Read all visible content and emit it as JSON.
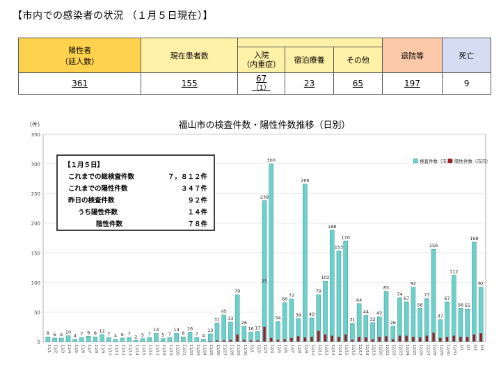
{
  "header": {
    "title": "【市内での感染者の状況 （１月５日現在）】"
  },
  "summary": {
    "headers": {
      "positive": "陽性者\n（延人数）",
      "current": "現在患者数",
      "hospital": "入院\n（内重症）",
      "hotel": "宿泊療養",
      "other": "その他",
      "discharged": "退院等",
      "death": "死亡"
    },
    "values": {
      "positive": "361",
      "current": "155",
      "hospital": "67",
      "hospital_severe": "（1）",
      "hotel": "23",
      "other": "65",
      "discharged": "197",
      "death": "9"
    }
  },
  "info": {
    "heading": "【１月５日】",
    "lines": [
      {
        "label": "これまでの総検査件数",
        "value": "７，８１２件"
      },
      {
        "label": "これまでの陽性件数",
        "value": "３４７件"
      },
      {
        "label": "昨日の検査件数",
        "value": "９２件"
      },
      {
        "label": "うち陽性件数",
        "value": "１４件"
      },
      {
        "label": "陰性件数",
        "value": "７８件"
      }
    ]
  },
  "chart_data": {
    "type": "bar",
    "title": "福山市の検査件数・陽性件数推移（日別）",
    "ylabel": "（件）",
    "ylim": [
      0,
      350
    ],
    "yticks": [
      0,
      50,
      100,
      150,
      200,
      250,
      300,
      350
    ],
    "grid": true,
    "legend_position": "top-right",
    "colors": {
      "tests": "#6fd0cb",
      "positive": "#9c1c24"
    },
    "series": [
      {
        "name": "検査件数（市内）",
        "values": [
          8,
          6,
          6,
          10,
          4,
          7,
          9,
          8,
          12,
          7,
          4,
          6,
          7,
          2,
          5,
          7,
          14,
          5,
          7,
          14,
          8,
          16,
          7,
          4,
          13,
          31,
          45,
          33,
          79,
          26,
          16,
          17,
          238,
          300,
          34,
          66,
          72,
          39,
          266,
          40,
          79,
          102,
          188,
          153,
          170,
          31,
          64,
          44,
          32,
          42,
          85,
          26,
          74,
          67,
          92,
          56,
          73,
          156,
          37,
          67,
          112,
          56,
          55,
          168,
          92
        ]
      },
      {
        "name": "陽性件数（市内）",
        "values": [
          0,
          0,
          0,
          0,
          0,
          0,
          0,
          0,
          0,
          0,
          0,
          0,
          0,
          0,
          0,
          0,
          0,
          0,
          0,
          0,
          0,
          0,
          0,
          0,
          1,
          2,
          2,
          3,
          12,
          3,
          2,
          2,
          25,
          6,
          3,
          4,
          6,
          9,
          7,
          8,
          18,
          12,
          10,
          8,
          12,
          3,
          8,
          7,
          4,
          8,
          9,
          4,
          10,
          10,
          8,
          7,
          10,
          15,
          6,
          8,
          10,
          8,
          8,
          12,
          14
        ]
      }
    ],
    "data_labels": [
      "8",
      "6",
      "6",
      "10",
      "4",
      "7",
      "9",
      "8",
      "12",
      "7",
      "4",
      "6",
      "7",
      "2",
      "5",
      "7",
      "14",
      "5",
      "7",
      "14",
      "8",
      "16",
      "7",
      "4",
      "13",
      "31",
      "45",
      "33",
      "79",
      "26",
      "16",
      "17",
      "238",
      "300",
      "34",
      "66",
      "72",
      "39",
      "266",
      "40",
      "79",
      "102",
      "188",
      "153",
      "170",
      "31",
      "64",
      "44",
      "32",
      "42",
      "85",
      "26",
      "74",
      "67",
      "92",
      "56",
      "73",
      "156",
      "37",
      "67",
      "112",
      "56",
      "55",
      "168",
      "92"
    ],
    "extra_labels": [
      {
        "index": 32,
        "text": "25"
      }
    ],
    "categories": [
      "11/1",
      "11/2",
      "11/3",
      "11/4",
      "11/5",
      "11/6",
      "11/7",
      "11/8",
      "11/9",
      "11/10",
      "11/11",
      "11/12",
      "11/13",
      "11/14",
      "11/15",
      "11/16",
      "11/17",
      "11/18",
      "11/19",
      "11/20",
      "11/21",
      "11/22",
      "11/23",
      "11/24",
      "11/25",
      "11/26",
      "11/27",
      "11/28",
      "11/29",
      "11/30",
      "12/1",
      "12/2",
      "12/3",
      "12/4",
      "12/5",
      "12/6",
      "12/7",
      "12/8",
      "12/9",
      "12/10",
      "12/11",
      "12/12",
      "12/13",
      "12/14",
      "12/15",
      "12/16",
      "12/17",
      "12/18",
      "12/19",
      "12/20",
      "12/21",
      "12/22",
      "12/23",
      "12/24",
      "12/25",
      "12/26",
      "12/27",
      "12/28",
      "12/29",
      "12/30",
      "12/31",
      "1/1",
      "1/2",
      "1/3",
      "1/4"
    ]
  }
}
